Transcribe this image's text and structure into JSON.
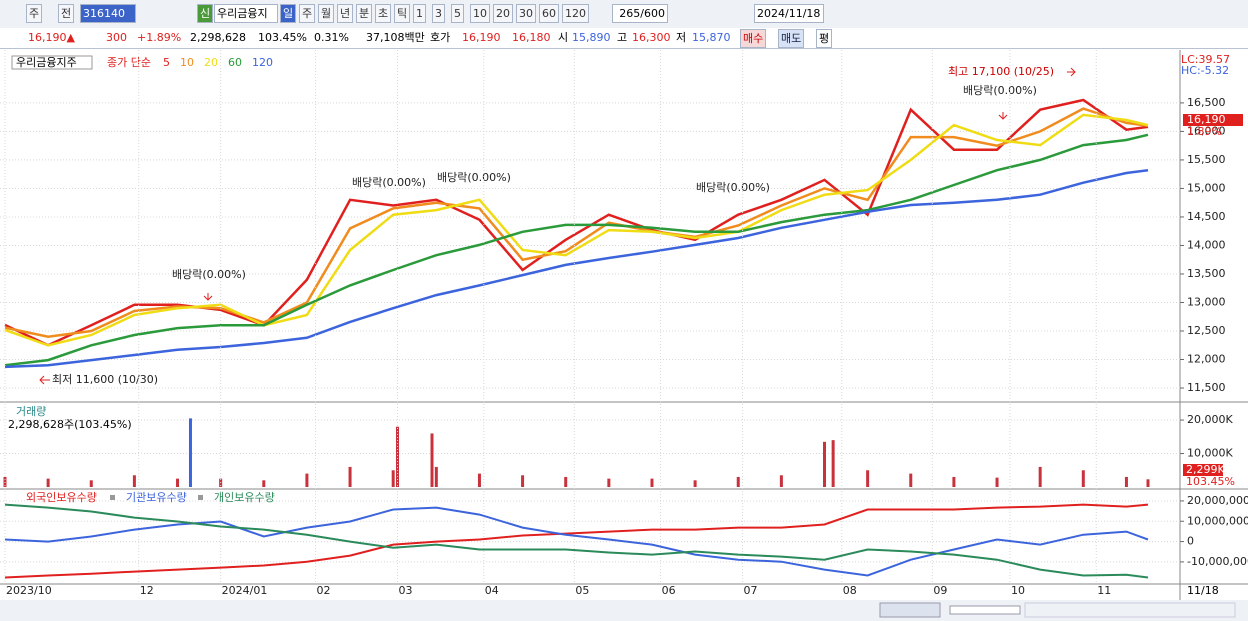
{
  "toolbar": {
    "market": "주",
    "type": "전",
    "code": "316140",
    "badge": "신",
    "stock_name": "우리금융지",
    "periods": [
      "일",
      "주",
      "월",
      "년",
      "분",
      "초",
      "틱",
      "1",
      "3",
      "5",
      "10",
      "20",
      "30",
      "60",
      "120"
    ],
    "count": "265",
    "count_max": "/600",
    "date": "2024/11/18"
  },
  "info_bar": {
    "price": "16,190▲",
    "change": "300",
    "change_pct": "+1.89%",
    "volume": "2,298,628",
    "volume_ratio": "103.45%",
    "turnover": "0.31%",
    "amount": "37,108백만",
    "ask_label": "호가",
    "ask": "16,190",
    "bid": "16,180",
    "open_label": "시",
    "open": "15,890",
    "high_label": "고",
    "high": "16,300",
    "low_label": "저",
    "low": "15,870",
    "buy": "매수",
    "sell": "매도",
    "avg": "평"
  },
  "chart_data": [
    {
      "type": "line",
      "title": "우리금융지주",
      "legend_title": "종가 단순",
      "x": [
        0,
        10,
        20,
        30,
        40,
        50,
        60,
        70,
        80,
        90,
        100,
        110,
        120,
        130,
        140,
        150,
        160,
        170,
        180,
        190,
        200,
        210,
        220,
        230,
        240,
        250,
        260,
        265
      ],
      "xlim": [
        0,
        265
      ],
      "ylim": [
        11290,
        17340
      ],
      "yticks": [
        {
          "value": 11500,
          "label": "11,500"
        },
        {
          "value": 12000,
          "label": "12,000"
        },
        {
          "value": 12500,
          "label": "12,500"
        },
        {
          "value": 13000,
          "label": "13,000"
        },
        {
          "value": 13500,
          "label": "13,500"
        },
        {
          "value": 14000,
          "label": "14,000"
        },
        {
          "value": 14500,
          "label": "14,500"
        },
        {
          "value": 15000,
          "label": "15,000"
        },
        {
          "value": 15500,
          "label": "15,500"
        },
        {
          "value": 16000,
          "label": "16,000"
        },
        {
          "value": 16500,
          "label": "16,500"
        }
      ],
      "series": [
        {
          "name": "5",
          "color": "#e0201e",
          "values": [
            12605,
            12250,
            12600,
            12960,
            12960,
            12870,
            12600,
            13400,
            14800,
            14700,
            14800,
            14450,
            13570,
            14100,
            14540,
            14270,
            14100,
            14540,
            14800,
            15150,
            14540,
            16380,
            15680,
            15680,
            16380,
            16550,
            16030,
            16080
          ]
        },
        {
          "name": "10",
          "color": "#f08c1e",
          "values": [
            12560,
            12400,
            12500,
            12850,
            12930,
            12900,
            12650,
            13000,
            14300,
            14650,
            14750,
            14650,
            13750,
            13900,
            14400,
            14250,
            14150,
            14350,
            14700,
            15000,
            14800,
            15900,
            15900,
            15750,
            16000,
            16400,
            16150,
            16100
          ]
        },
        {
          "name": "20",
          "color": "#f0dc14",
          "values": [
            12520,
            12250,
            12430,
            12780,
            12900,
            12960,
            12600,
            12780,
            13920,
            14540,
            14620,
            14800,
            13920,
            13830,
            14270,
            14240,
            14130,
            14240,
            14620,
            14890,
            14970,
            15500,
            16110,
            15850,
            15760,
            16290,
            16200,
            16110
          ]
        },
        {
          "name": "60",
          "color": "#2a9a3a",
          "values": [
            11900,
            11990,
            12250,
            12430,
            12550,
            12600,
            12600,
            12960,
            13300,
            13570,
            13830,
            14010,
            14240,
            14360,
            14360,
            14310,
            14240,
            14240,
            14410,
            14540,
            14620,
            14800,
            15060,
            15320,
            15500,
            15760,
            15850,
            15940
          ]
        },
        {
          "name": "120",
          "color": "#3c64dc",
          "values": [
            11870,
            11900,
            11990,
            12080,
            12170,
            12220,
            12290,
            12380,
            12660,
            12900,
            13130,
            13300,
            13480,
            13660,
            13780,
            13890,
            14010,
            14130,
            14310,
            14450,
            14590,
            14710,
            14750,
            14800,
            14890,
            15100,
            15270,
            15320
          ]
        }
      ],
      "annotations": [
        "배당락(0.00%)",
        "배당락(0.00%)",
        "배당락(0.00%)",
        "배당락(0.00%)",
        "배당락(0.00%)",
        "최고 17,100 (10/25)",
        "최저 11,600 (10/30)"
      ],
      "last_price": "16,190",
      "last_change": "1.89%",
      "lc": "LC:39.57",
      "hc": "HC:-5.32"
    },
    {
      "type": "bar",
      "title": "거래량",
      "subtitle": "2,298,628주(103.45%)",
      "color": "#c8323c",
      "x": [
        0,
        10,
        20,
        30,
        40,
        43,
        50,
        60,
        70,
        80,
        90,
        91,
        99,
        100,
        110,
        120,
        130,
        140,
        150,
        160,
        170,
        180,
        190,
        192,
        200,
        210,
        220,
        230,
        240,
        250,
        260,
        265
      ],
      "values": [
        3000,
        2500,
        2000,
        3500,
        2500,
        20500,
        2500,
        2000,
        4000,
        6000,
        5000,
        18000,
        16000,
        6000,
        4000,
        3500,
        3000,
        2500,
        2500,
        2000,
        3000,
        3500,
        13500,
        14000,
        5000,
        4000,
        3000,
        2800,
        6000,
        5000,
        3000,
        2299
      ],
      "xlim": [
        0,
        265
      ],
      "ylim": [
        0,
        24500
      ],
      "yticks": [
        {
          "value": 10000,
          "label": "10,000K"
        },
        {
          "value": 20000,
          "label": "20,000K"
        }
      ],
      "last_label": "2,299K",
      "last_ratio": "103.45%"
    },
    {
      "type": "line",
      "x": [
        0,
        10,
        20,
        30,
        40,
        50,
        60,
        70,
        80,
        90,
        100,
        110,
        120,
        130,
        140,
        150,
        160,
        170,
        180,
        190,
        200,
        210,
        220,
        230,
        240,
        250,
        260,
        265
      ],
      "xlim": [
        0,
        265
      ],
      "ylim": [
        -19900000,
        24400000
      ],
      "yticks": [
        {
          "value": -10000000,
          "label": "-10,000,000"
        },
        0,
        {
          "value": 10000000,
          "label": "10,000,000"
        },
        {
          "value": 20000000,
          "label": "20,000,000"
        }
      ],
      "xticks": [
        {
          "value": 0,
          "label": "2023/10"
        },
        {
          "value": 31,
          "label": "12"
        },
        {
          "value": 50,
          "label": "2024/01"
        },
        {
          "value": 72,
          "label": "02"
        },
        {
          "value": 91,
          "label": "03"
        },
        {
          "value": 111,
          "label": "04"
        },
        {
          "value": 132,
          "label": "05"
        },
        {
          "value": 152,
          "label": "06"
        },
        {
          "value": 171,
          "label": "07"
        },
        {
          "value": 194,
          "label": "08"
        },
        {
          "value": 215,
          "label": "09"
        },
        {
          "value": 233,
          "label": "10"
        },
        {
          "value": 253,
          "label": "11"
        }
      ],
      "x_end_label": "11/18",
      "series": [
        {
          "name": "외국인보유수량",
          "color": "#e0201e",
          "values": [
            -17700000,
            -16700000,
            -15800000,
            -14800000,
            -13800000,
            -12800000,
            -11800000,
            -9900000,
            -6900000,
            -1500000,
            0,
            1000000,
            3000000,
            3900000,
            4900000,
            5900000,
            5900000,
            6900000,
            6900000,
            8400000,
            15800000,
            15800000,
            15800000,
            16700000,
            17200000,
            18200000,
            17200000,
            18200000
          ]
        },
        {
          "name": "기관보유수량",
          "color": "#3c64dc",
          "values": [
            1000000,
            0,
            2500000,
            5900000,
            8400000,
            9900000,
            2500000,
            6900000,
            9900000,
            15800000,
            16700000,
            13300000,
            6900000,
            3400000,
            1000000,
            -1500000,
            -6400000,
            -8900000,
            -9900000,
            -13800000,
            -16700000,
            -8900000,
            -3900000,
            1000000,
            -1500000,
            3400000,
            4900000,
            1000000
          ]
        },
        {
          "name": "개인보유수량",
          "color": "#2a8a5a",
          "values": [
            18200000,
            16700000,
            14800000,
            11800000,
            9900000,
            7400000,
            5900000,
            3400000,
            0,
            -3000000,
            -1500000,
            -3900000,
            -3900000,
            -3900000,
            -5400000,
            -6400000,
            -4900000,
            -6400000,
            -7400000,
            -8900000,
            -3900000,
            -4900000,
            -6400000,
            -8900000,
            -13800000,
            -16700000,
            -16300000,
            -17700000
          ]
        }
      ]
    }
  ]
}
